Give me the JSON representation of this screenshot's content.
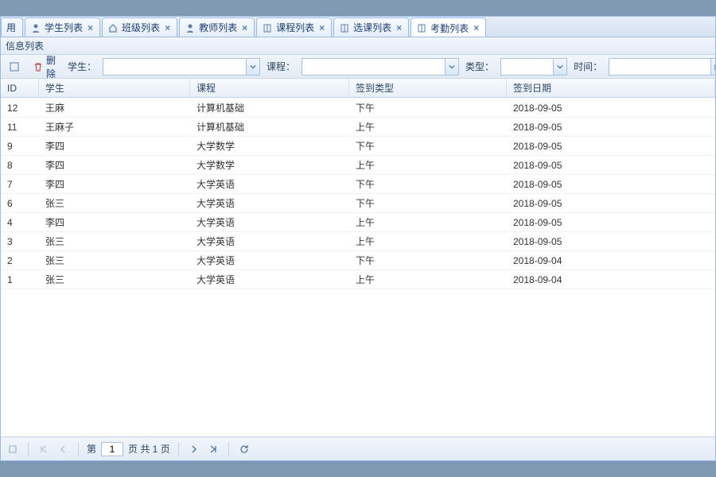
{
  "colors": {
    "frame_bg": "#8099b3",
    "border": "#99bce8",
    "text": "#2b4664",
    "link": "#1c3e72"
  },
  "tabs": [
    {
      "label": "用",
      "closable": false
    },
    {
      "label": "学生列表",
      "icon": "person",
      "closable": true
    },
    {
      "label": "班级列表",
      "icon": "home",
      "closable": true
    },
    {
      "label": "教师列表",
      "icon": "person",
      "closable": true
    },
    {
      "label": "课程列表",
      "icon": "book",
      "closable": true
    },
    {
      "label": "选课列表",
      "icon": "book",
      "closable": true
    },
    {
      "label": "考勤列表",
      "icon": "book",
      "closable": true,
      "active": true
    }
  ],
  "panel_title": "信息列表",
  "toolbar": {
    "delete_label": "删除",
    "student_label": "学生：",
    "course_label": "课程：",
    "type_label": "类型：",
    "time_label": "时间：",
    "search_label": "搜",
    "student_width": 180,
    "course_width": 180,
    "type_width": 66,
    "time_width": 128
  },
  "columns": [
    {
      "key": "id",
      "label": "ID"
    },
    {
      "key": "stu",
      "label": "学生"
    },
    {
      "key": "course",
      "label": "课程"
    },
    {
      "key": "type",
      "label": "签到类型"
    },
    {
      "key": "date",
      "label": "签到日期"
    }
  ],
  "rows": [
    {
      "id": "12",
      "stu": "王麻",
      "course": "计算机基础",
      "type": "下午",
      "date": "2018-09-05"
    },
    {
      "id": "11",
      "stu": "王麻子",
      "course": "计算机基础",
      "type": "上午",
      "date": "2018-09-05"
    },
    {
      "id": "9",
      "stu": "李四",
      "course": "大学数学",
      "type": "下午",
      "date": "2018-09-05"
    },
    {
      "id": "8",
      "stu": "李四",
      "course": "大学数学",
      "type": "上午",
      "date": "2018-09-05"
    },
    {
      "id": "7",
      "stu": "李四",
      "course": "大学英语",
      "type": "下午",
      "date": "2018-09-05"
    },
    {
      "id": "6",
      "stu": "张三",
      "course": "大学英语",
      "type": "下午",
      "date": "2018-09-05"
    },
    {
      "id": "4",
      "stu": "李四",
      "course": "大学英语",
      "type": "上午",
      "date": "2018-09-05"
    },
    {
      "id": "3",
      "stu": "张三",
      "course": "大学英语",
      "type": "上午",
      "date": "2018-09-05"
    },
    {
      "id": "2",
      "stu": "张三",
      "course": "大学英语",
      "type": "下午",
      "date": "2018-09-04"
    },
    {
      "id": "1",
      "stu": "张三",
      "course": "大学英语",
      "type": "上午",
      "date": "2018-09-04"
    }
  ],
  "pager": {
    "page_prefix": "第",
    "page_value": "1",
    "page_suffix": "页 共 1 页"
  }
}
